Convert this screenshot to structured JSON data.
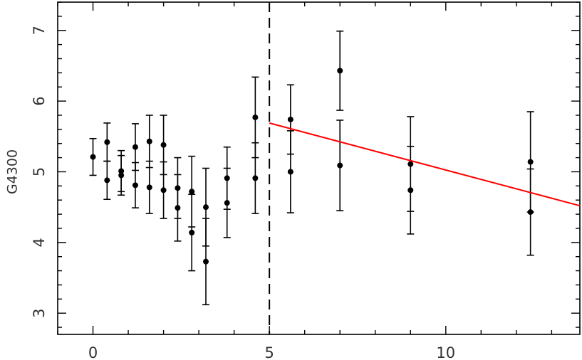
{
  "chart_data": {
    "type": "scatter",
    "title": "",
    "xlabel": "",
    "ylabel": "G4300",
    "xlim": [
      -1,
      13.8
    ],
    "ylim": [
      2.7,
      7.4
    ],
    "x_ticks": [
      0,
      5,
      10
    ],
    "y_ticks": [
      3,
      4,
      5,
      6,
      7
    ],
    "grid": false,
    "colors": {
      "points": "#000000",
      "fit_line": "#ff0000",
      "axes": "#000000"
    },
    "points": [
      {
        "x": 0.0,
        "y": 5.21,
        "err": 0.26
      },
      {
        "x": 0.4,
        "y": 5.42,
        "err": 0.27
      },
      {
        "x": 0.4,
        "y": 4.88,
        "err": 0.27
      },
      {
        "x": 0.8,
        "y": 5.01,
        "err": 0.29
      },
      {
        "x": 0.8,
        "y": 4.95,
        "err": 0.28
      },
      {
        "x": 1.2,
        "y": 5.35,
        "err": 0.33
      },
      {
        "x": 1.2,
        "y": 4.81,
        "err": 0.32
      },
      {
        "x": 1.6,
        "y": 5.43,
        "err": 0.37
      },
      {
        "x": 1.6,
        "y": 4.78,
        "err": 0.37
      },
      {
        "x": 2.0,
        "y": 5.38,
        "err": 0.42
      },
      {
        "x": 2.0,
        "y": 4.74,
        "err": 0.4
      },
      {
        "x": 2.4,
        "y": 4.77,
        "err": 0.43
      },
      {
        "x": 2.4,
        "y": 4.49,
        "err": 0.47
      },
      {
        "x": 2.8,
        "y": 4.72,
        "err": 0.5
      },
      {
        "x": 2.8,
        "y": 4.14,
        "err": 0.54
      },
      {
        "x": 3.2,
        "y": 4.5,
        "err": 0.55
      },
      {
        "x": 3.2,
        "y": 3.73,
        "err": 0.61
      },
      {
        "x": 3.8,
        "y": 4.91,
        "err": 0.44
      },
      {
        "x": 3.8,
        "y": 4.56,
        "err": 0.49
      },
      {
        "x": 4.6,
        "y": 5.77,
        "err": 0.57
      },
      {
        "x": 4.6,
        "y": 4.91,
        "err": 0.5
      },
      {
        "x": 5.6,
        "y": 5.74,
        "err": 0.49
      },
      {
        "x": 5.6,
        "y": 5.0,
        "err": 0.58
      },
      {
        "x": 7.0,
        "y": 6.43,
        "err": 0.56
      },
      {
        "x": 7.0,
        "y": 5.09,
        "err": 0.64
      },
      {
        "x": 9.0,
        "y": 5.11,
        "err": 0.67
      },
      {
        "x": 9.0,
        "y": 4.74,
        "err": 0.62
      },
      {
        "x": 12.4,
        "y": 5.14,
        "err": 0.71
      },
      {
        "x": 12.4,
        "y": 4.43,
        "err": 0.61
      }
    ],
    "vline": {
      "x": 5,
      "style": "dashed"
    },
    "fit_line": {
      "x": [
        5.0,
        13.8
      ],
      "y": [
        5.69,
        4.52
      ]
    }
  }
}
